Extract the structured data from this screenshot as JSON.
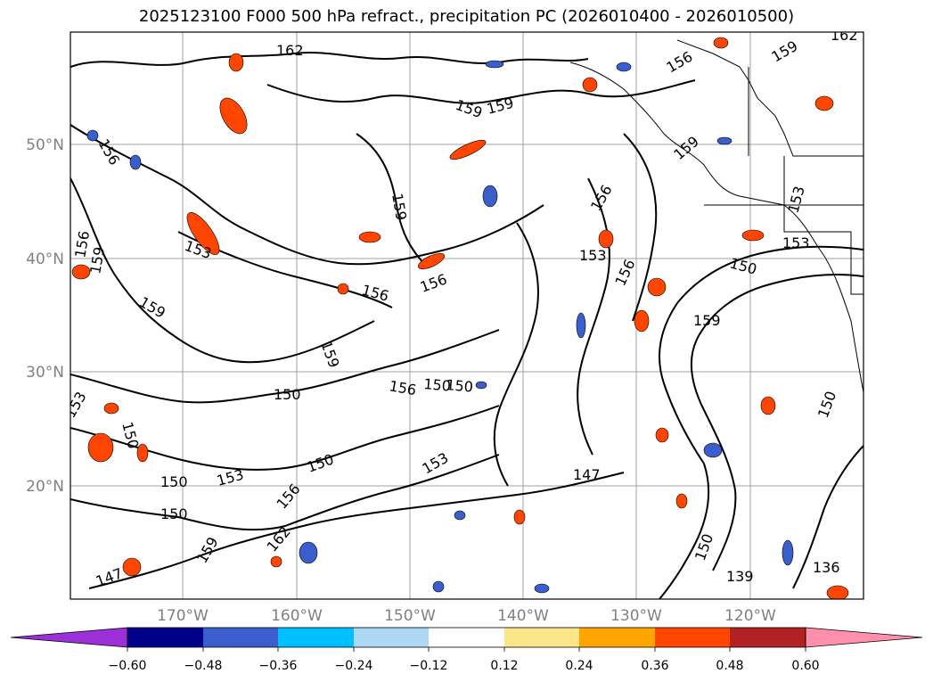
{
  "title": "2025123100 F000 500 hPa refract., precipitation PC (2026010400 - 2026010500)",
  "latitude_labels": [
    "50°N",
    "40°N",
    "30°N",
    "20°N"
  ],
  "longitude_labels": [
    "170°W",
    "160°W",
    "150°W",
    "140°W",
    "130°W",
    "120°W"
  ],
  "contour_labels": [
    "162",
    "159",
    "156",
    "159",
    "162",
    "159",
    "156",
    "159",
    "156",
    "153",
    "153",
    "159",
    "156",
    "156",
    "159",
    "153",
    "150",
    "153",
    "150",
    "159",
    "156",
    "150",
    "150",
    "150",
    "153",
    "150",
    "150",
    "153",
    "150",
    "156",
    "147",
    "162",
    "159",
    "147",
    "150",
    "156",
    "139",
    "136",
    "159",
    "150",
    "153",
    "156",
    "159"
  ],
  "colorbar": {
    "ticks": [
      "−0.60",
      "−0.48",
      "−0.36",
      "−0.24",
      "−0.12",
      "0.12",
      "0.24",
      "0.36",
      "0.48",
      "0.60"
    ],
    "colors": [
      "#9b30d9",
      "#00008b",
      "#3a5fcd",
      "#00bfff",
      "#add8f5",
      "#ffffff",
      "#fde68a",
      "#ffa500",
      "#ff4500",
      "#b22222",
      "#ff8fab"
    ]
  },
  "colors": {
    "contour": "#000000",
    "grid": "#a0a0a0",
    "coast": "#000000"
  }
}
